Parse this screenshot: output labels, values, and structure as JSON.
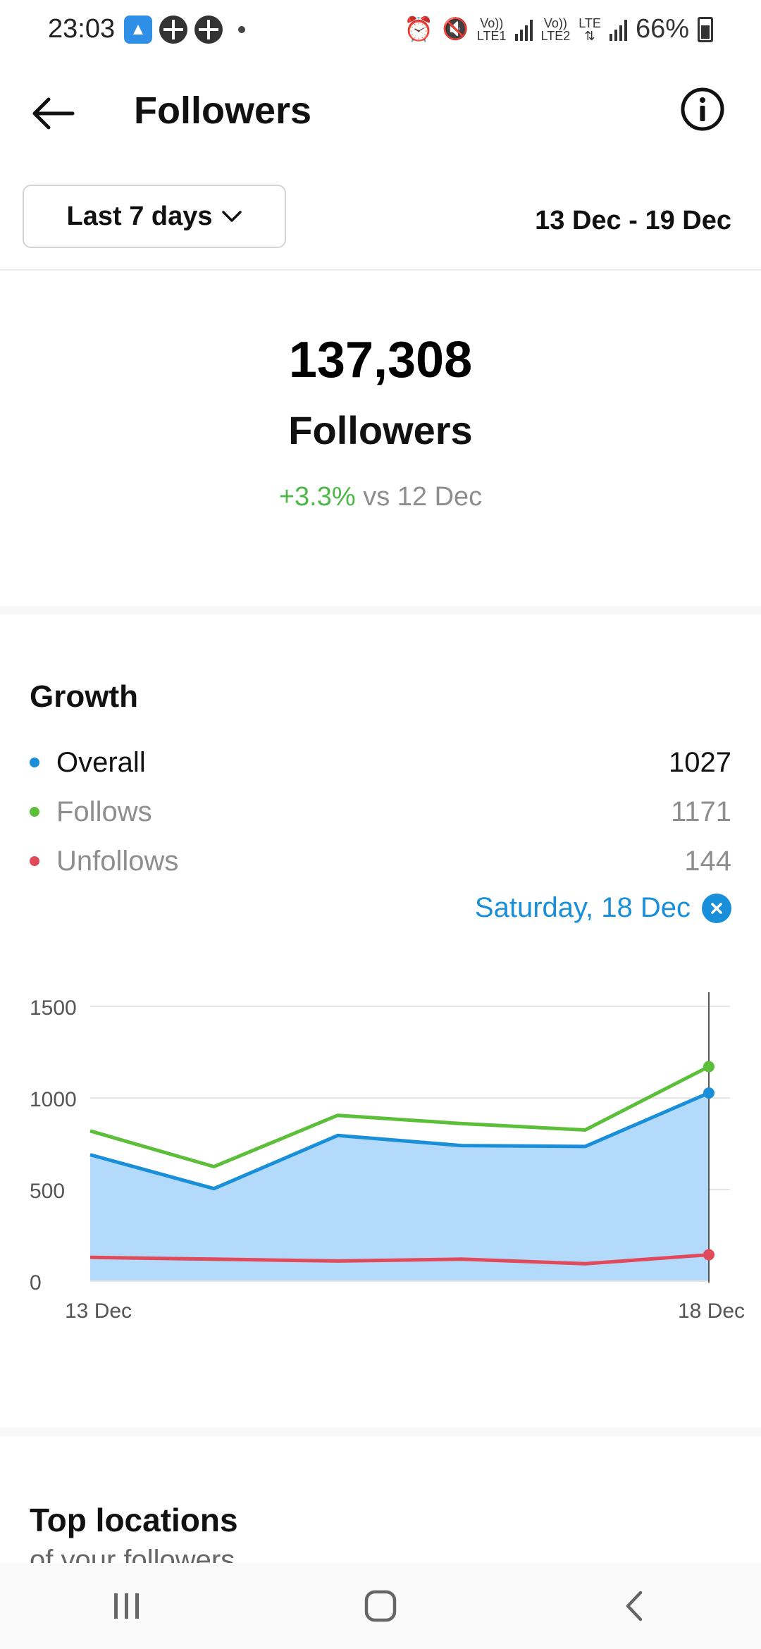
{
  "status_bar": {
    "time": "23:03",
    "battery": "66%",
    "sim1_label_top": "Vo))",
    "sim1_label_bottom": "LTE1",
    "sim2_label_top": "Vo))",
    "sim2_label_bottom": "LTE2",
    "lte_label": "LTE",
    "icons": [
      "rocket-app-icon",
      "clover-icon",
      "clover-icon",
      "alarm-icon",
      "mute-icon",
      "signal-icon",
      "signal-icon",
      "battery-icon"
    ]
  },
  "header": {
    "title": "Followers",
    "back_icon": "arrow-left-icon",
    "info_icon": "info-icon"
  },
  "filter": {
    "range_label": "Last 7 days",
    "date_range": "13 Dec - 19 Dec"
  },
  "summary": {
    "count": "137,308",
    "label": "Followers",
    "change": "+3.3%",
    "change_suffix": "vs 12 Dec"
  },
  "growth": {
    "title": "Growth",
    "legend": [
      {
        "name": "Overall",
        "value": "1027",
        "color": "#1a8fd9"
      },
      {
        "name": "Follows",
        "value": "1171",
        "color": "#5cbf3a"
      },
      {
        "name": "Unfollows",
        "value": "144",
        "color": "#e04a5a"
      }
    ],
    "selected_date": "Saturday, 18 Dec"
  },
  "chart_data": {
    "type": "line",
    "x": [
      "13 Dec",
      "14 Dec",
      "15 Dec",
      "16 Dec",
      "17 Dec",
      "18 Dec"
    ],
    "x_tick_labels": [
      "13 Dec",
      "18 Dec"
    ],
    "y_tick_labels": [
      "0",
      "500",
      "1000",
      "1500"
    ],
    "ylim": [
      0,
      1500
    ],
    "grid": true,
    "series": [
      {
        "name": "Overall",
        "color": "#1a8fd9",
        "fill": "#b3dafb",
        "values": [
          690,
          505,
          795,
          740,
          735,
          1027
        ]
      },
      {
        "name": "Follows",
        "color": "#5cbf3a",
        "values": [
          820,
          625,
          905,
          860,
          825,
          1171
        ]
      },
      {
        "name": "Unfollows",
        "color": "#e04a5a",
        "values": [
          130,
          120,
          110,
          120,
          95,
          144
        ]
      }
    ],
    "selected_index": 5
  },
  "sections": {
    "top_locations_title": "Top locations",
    "top_locations_sub": "of your followers"
  },
  "navbar": {
    "recents_icon": "recents-icon",
    "home_icon": "home-icon",
    "back_icon": "back-nav-icon"
  }
}
